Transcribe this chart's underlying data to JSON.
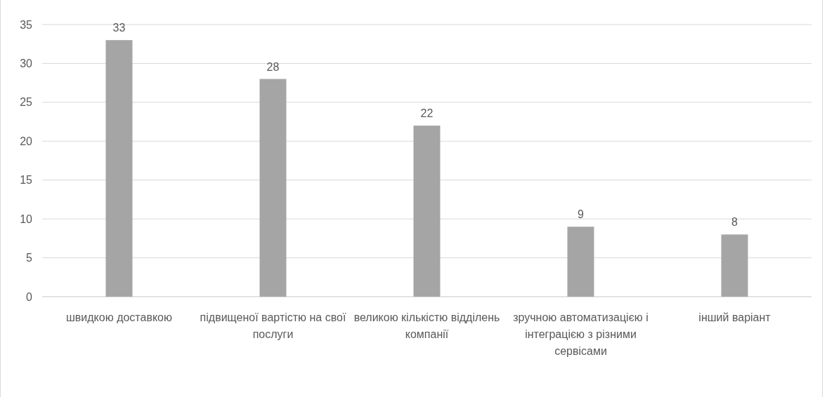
{
  "chart_data": {
    "type": "bar",
    "categories": [
      "швидкою доставкою",
      "підвищеної вартістю на свої послуги",
      "великою кількістю відділень компанії",
      "зручною автоматизацією і інтеграцією з різними сервісами",
      "інший варіант"
    ],
    "values": [
      33,
      28,
      22,
      9,
      8
    ],
    "color": "#a5a5a5",
    "ylim": [
      0,
      35
    ],
    "yticks": [
      0,
      5,
      10,
      15,
      20,
      25,
      30,
      35
    ],
    "grid": "y",
    "data_labels": true
  }
}
